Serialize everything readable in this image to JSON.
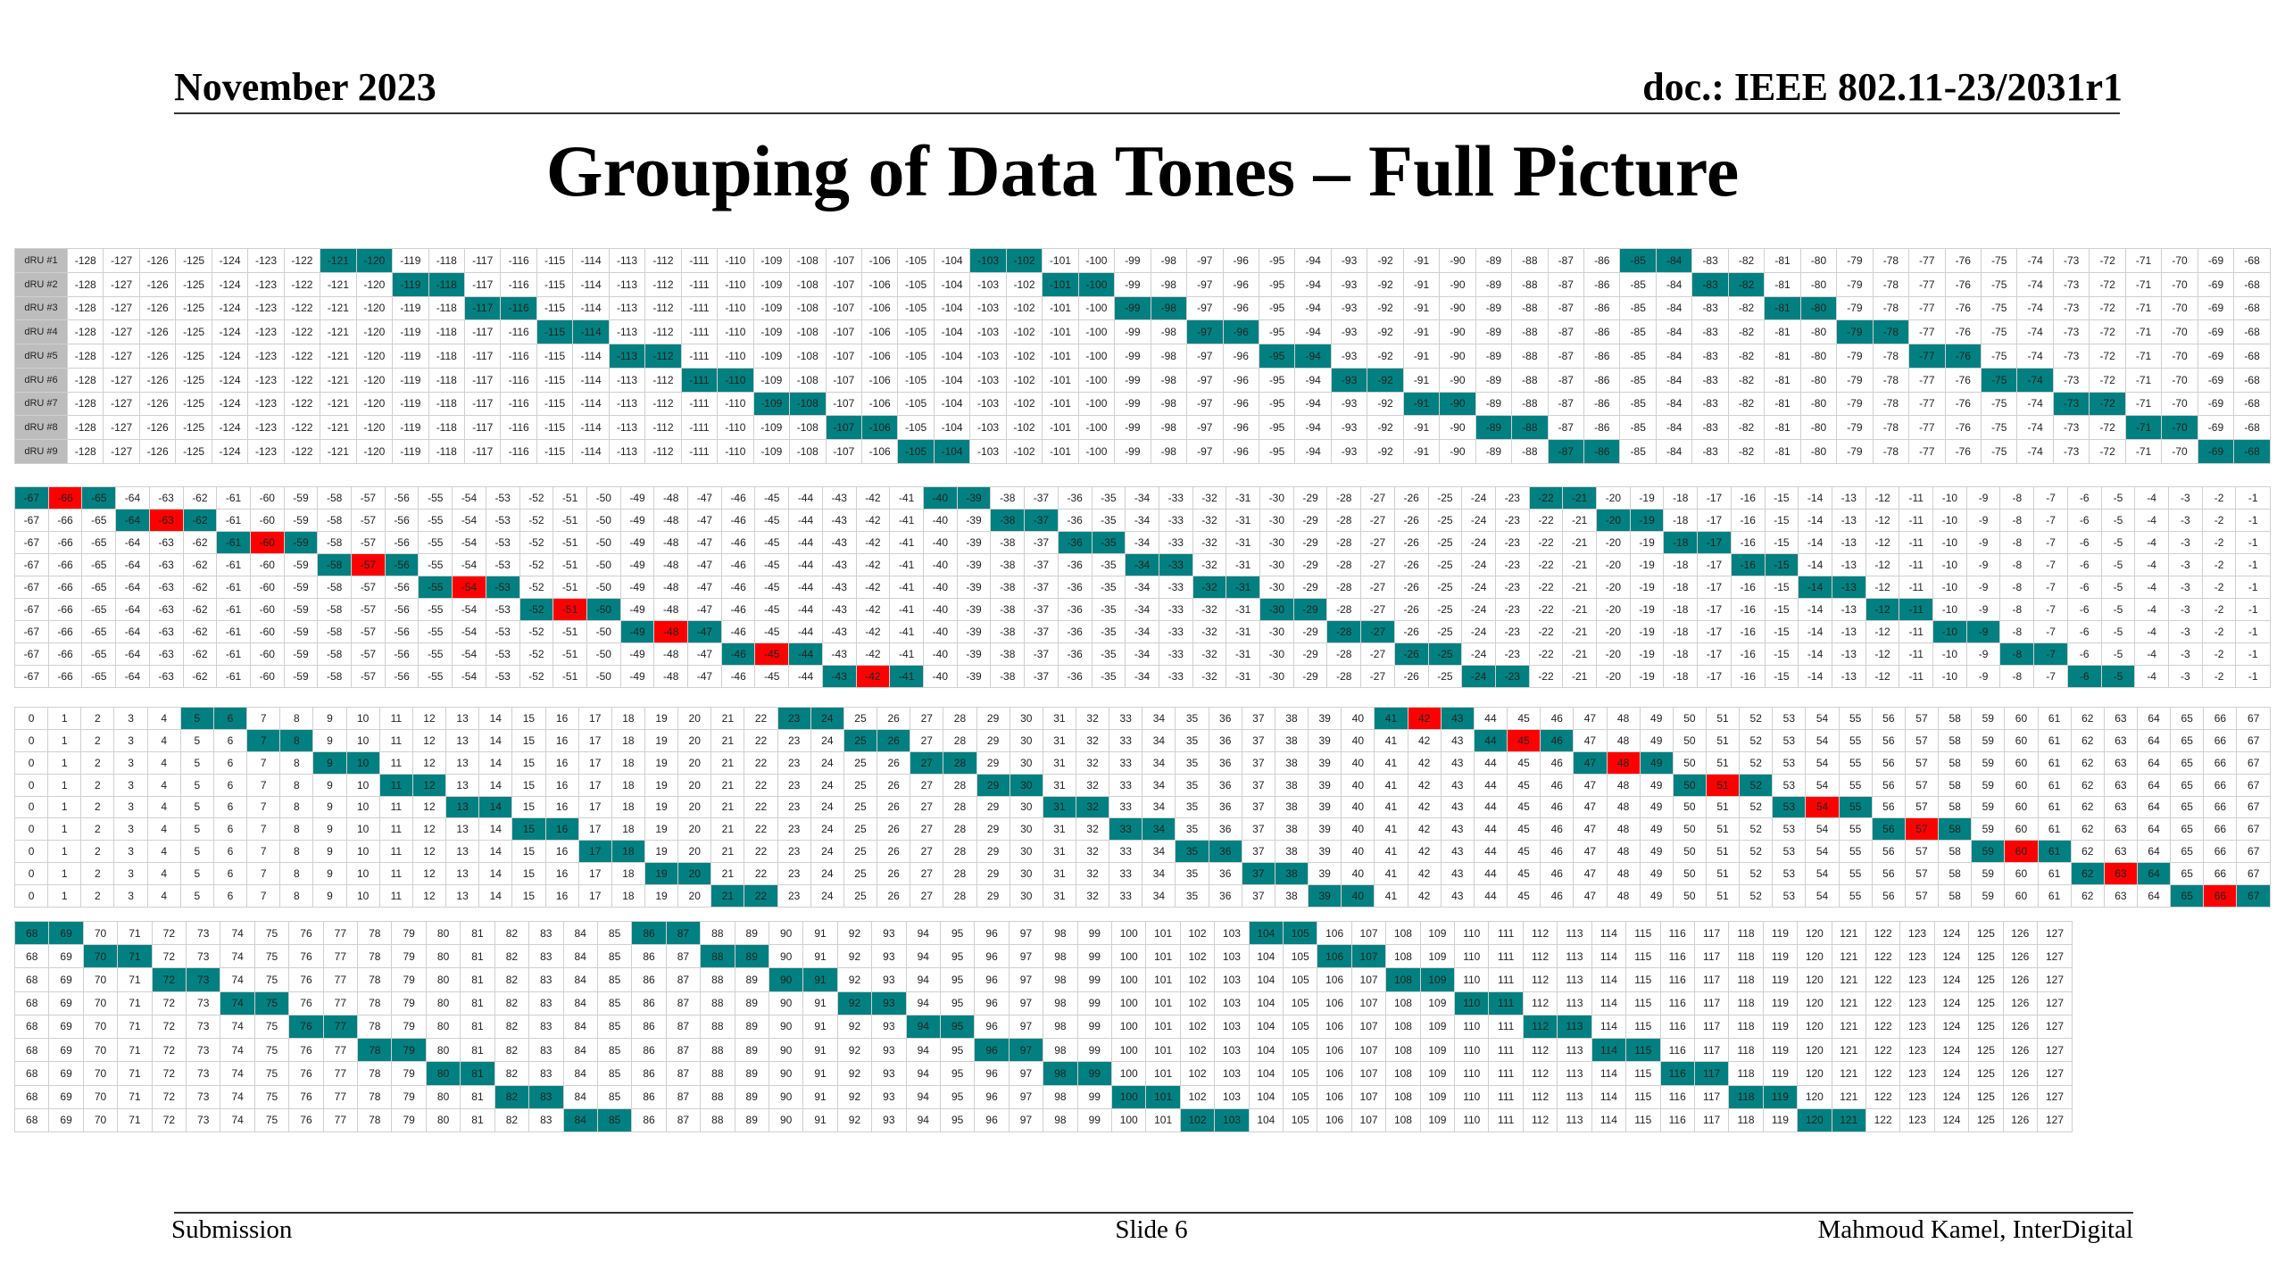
{
  "header": {
    "date": "November 2023",
    "doc": "doc.: IEEE 802.11-23/2031r1"
  },
  "title": "Grouping of Data Tones – Full Picture",
  "table": {
    "teal_color": "#008080",
    "red_color": "#ff0000",
    "row_labels": [
      "dRU #1",
      "dRU #2",
      "dRU #3",
      "dRU #4",
      "dRU #5",
      "dRU #6",
      "dRU #7",
      "dRU #8",
      "dRU #9"
    ],
    "blocks": [
      {
        "tones": [
          -128,
          -127,
          -126,
          -125,
          -124,
          -123,
          -122,
          -121,
          -120,
          -119,
          -118,
          -117,
          -116,
          -115,
          -114,
          -113,
          -112,
          -111,
          -110,
          -109,
          -108,
          -107,
          -106,
          -105,
          -104,
          -103,
          -102,
          -101,
          -100,
          -99,
          -98,
          -97,
          -96,
          -95,
          -94,
          -93,
          -92,
          -91,
          -90,
          -89,
          -88,
          -87,
          -86,
          -85,
          -84,
          -83,
          -82,
          -81,
          -80,
          -79,
          -78,
          -77,
          -76,
          -75,
          -74,
          -73,
          -72,
          -71,
          -70,
          -69,
          -68
        ],
        "teal": [
          [
            -121,
            -120,
            -103,
            -102,
            -85,
            -84
          ],
          [
            -119,
            -118,
            -101,
            -100,
            -83,
            -82
          ],
          [
            -117,
            -116,
            -99,
            -98,
            -81,
            -80
          ],
          [
            -115,
            -114,
            -97,
            -96,
            -79,
            -78
          ],
          [
            -113,
            -112,
            -95,
            -94,
            -77,
            -76
          ],
          [
            -111,
            -110,
            -93,
            -92,
            -75,
            -74
          ],
          [
            -109,
            -108,
            -91,
            -90,
            -73,
            -72
          ],
          [
            -107,
            -106,
            -89,
            -88,
            -71,
            -70
          ],
          [
            -105,
            -104,
            -87,
            -86,
            -69,
            -68
          ]
        ],
        "red": [
          [],
          [],
          [],
          [],
          [],
          [],
          [],
          [],
          []
        ]
      },
      {
        "tones": [
          -67,
          -66,
          -65,
          -64,
          -63,
          -62,
          -61,
          -60,
          -59,
          -58,
          -57,
          -56,
          -55,
          -54,
          -53,
          -52,
          -51,
          -50,
          -49,
          -48,
          -47,
          -46,
          -45,
          -44,
          -43,
          -42,
          -41,
          -40,
          -39,
          -38,
          -37,
          -36,
          -35,
          -34,
          -33,
          -32,
          -31,
          -30,
          -29,
          -28,
          -27,
          -26,
          -25,
          -24,
          -23,
          -22,
          -21,
          -20,
          -19,
          -18,
          -17,
          -16,
          -15,
          -14,
          -13,
          -12,
          -11,
          -10,
          -9,
          -8,
          -7,
          -6,
          -5,
          -4,
          -3,
          -2,
          -1
        ],
        "teal": [
          [
            -67,
            -65,
            -40,
            -39,
            -22,
            -21
          ],
          [
            -64,
            -62,
            -38,
            -37,
            -20,
            -19
          ],
          [
            -61,
            -59,
            -36,
            -35,
            -18,
            -17
          ],
          [
            -58,
            -56,
            -34,
            -33,
            -16,
            -15
          ],
          [
            -55,
            -53,
            -32,
            -31,
            -14,
            -13
          ],
          [
            -52,
            -50,
            -30,
            -29,
            -12,
            -11
          ],
          [
            -49,
            -47,
            -28,
            -27,
            -10,
            -9
          ],
          [
            -46,
            -44,
            -26,
            -25,
            -8,
            -7
          ],
          [
            -43,
            -41,
            -24,
            -23,
            -6,
            -5
          ]
        ],
        "red": [
          [
            -66
          ],
          [
            -63
          ],
          [
            -60
          ],
          [
            -57
          ],
          [
            -54
          ],
          [
            -51
          ],
          [
            -48
          ],
          [
            -45
          ],
          [
            -42
          ]
        ]
      },
      {
        "tones": [
          0,
          1,
          2,
          3,
          4,
          5,
          6,
          7,
          8,
          9,
          10,
          11,
          12,
          13,
          14,
          15,
          16,
          17,
          18,
          19,
          20,
          21,
          22,
          23,
          24,
          25,
          26,
          27,
          28,
          29,
          30,
          31,
          32,
          33,
          34,
          35,
          36,
          37,
          38,
          39,
          40,
          41,
          42,
          43,
          44,
          45,
          46,
          47,
          48,
          49,
          50,
          51,
          52,
          53,
          54,
          55,
          56,
          57,
          58,
          59,
          60,
          61,
          62,
          63,
          64,
          65,
          66,
          67
        ],
        "teal": [
          [
            5,
            6,
            23,
            24,
            41,
            43
          ],
          [
            7,
            8,
            25,
            26,
            44,
            46
          ],
          [
            9,
            10,
            27,
            28,
            47,
            49
          ],
          [
            11,
            12,
            29,
            30,
            50,
            52
          ],
          [
            13,
            14,
            31,
            32,
            53,
            55
          ],
          [
            15,
            16,
            33,
            34,
            56,
            58
          ],
          [
            17,
            18,
            35,
            36,
            59,
            61
          ],
          [
            19,
            20,
            37,
            38,
            62,
            64
          ],
          [
            21,
            22,
            39,
            40,
            65,
            67
          ]
        ],
        "red": [
          [
            42
          ],
          [
            45
          ],
          [
            48
          ],
          [
            51
          ],
          [
            54
          ],
          [
            57
          ],
          [
            60
          ],
          [
            63
          ],
          [
            66
          ]
        ]
      },
      {
        "tones": [
          68,
          69,
          70,
          71,
          72,
          73,
          74,
          75,
          76,
          77,
          78,
          79,
          80,
          81,
          82,
          83,
          84,
          85,
          86,
          87,
          88,
          89,
          90,
          91,
          92,
          93,
          94,
          95,
          96,
          97,
          98,
          99,
          100,
          101,
          102,
          103,
          104,
          105,
          106,
          107,
          108,
          109,
          110,
          111,
          112,
          113,
          114,
          115,
          116,
          117,
          118,
          119,
          120,
          121,
          122,
          123,
          124,
          125,
          126,
          127
        ],
        "teal": [
          [
            68,
            69,
            86,
            87,
            104,
            105
          ],
          [
            70,
            71,
            88,
            89,
            106,
            107
          ],
          [
            72,
            73,
            90,
            91,
            108,
            109
          ],
          [
            74,
            75,
            92,
            93,
            110,
            111
          ],
          [
            76,
            77,
            94,
            95,
            112,
            113
          ],
          [
            78,
            79,
            96,
            97,
            114,
            115
          ],
          [
            80,
            81,
            98,
            99,
            116,
            117
          ],
          [
            82,
            83,
            100,
            101,
            118,
            119
          ],
          [
            84,
            85,
            102,
            103,
            120,
            121
          ]
        ],
        "red": [
          [],
          [],
          [],
          [],
          [],
          [],
          [],
          [],
          []
        ]
      }
    ]
  },
  "footer": {
    "left": "Submission",
    "center": "Slide 6",
    "right": "Mahmoud Kamel, InterDigital"
  }
}
